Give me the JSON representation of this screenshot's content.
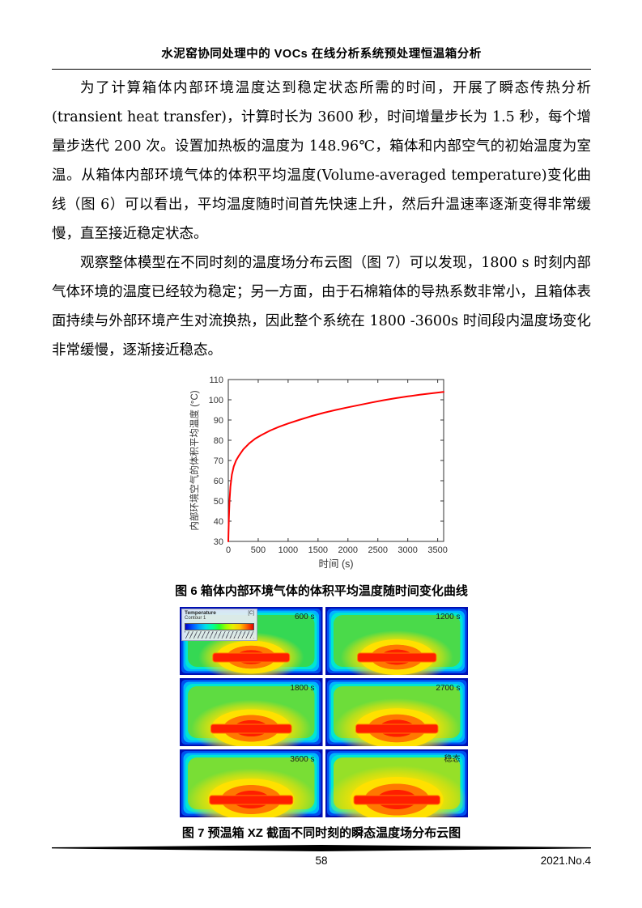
{
  "header": {
    "title": "水泥窑协同处理中的 VOCs 在线分析系统预处理恒温箱分析"
  },
  "paragraphs": {
    "p1": "为了计算箱体内部环境温度达到稳定状态所需的时间，开展了瞬态传热分析 (transient heat transfer)，计算时长为 3600 秒，时间增量步长为 1.5 秒，每个增量步迭代 200 次。设置加热板的温度为 148.96℃，箱体和内部空气的初始温度为室温。从箱体内部环境气体的体积平均温度(Volume-averaged temperature)变化曲线（图 6）可以看出，平均温度随时间首先快速上升，然后升温速率逐渐变得非常缓慢，直至接近稳定状态。",
    "p2": "观察整体模型在不同时刻的温度场分布云图（图 7）可以发现，1800 s 时刻内部气体环境的温度已经较为稳定；另一方面，由于石棉箱体的导热系数非常小，且箱体表面持续与外部环境产生对流换热，因此整个系统在 1800 -3600s 时间段内温度场变化非常缓慢，逐渐接近稳态。"
  },
  "chart_data": {
    "type": "line",
    "title": "",
    "xlabel": "时间 (s)",
    "ylabel": "内部环境空气的体积平均温度 (°C)",
    "xlim": [
      0,
      3600
    ],
    "ylim": [
      30,
      110
    ],
    "xticks": [
      0,
      500,
      1000,
      1500,
      2000,
      2500,
      3000,
      3500
    ],
    "yticks": [
      30,
      40,
      50,
      60,
      70,
      80,
      90,
      100,
      110
    ],
    "grid": false,
    "legend": null,
    "line_color": "#ff0000",
    "x": [
      0,
      8,
      20,
      35,
      60,
      90,
      130,
      180,
      250,
      350,
      450,
      550,
      700,
      850,
      1000,
      1200,
      1400,
      1600,
      1800,
      2000,
      2200,
      2400,
      2600,
      2800,
      3000,
      3200,
      3400,
      3600
    ],
    "y": [
      30,
      40,
      50,
      57,
      63,
      67,
      70,
      72.5,
      75.5,
      78.5,
      80.8,
      82.5,
      84.8,
      86.7,
      88.3,
      90.2,
      92,
      93.6,
      95,
      96.3,
      97.5,
      98.7,
      99.8,
      100.8,
      101.7,
      102.5,
      103.2,
      103.9
    ]
  },
  "figure6": {
    "caption": "图 6 箱体内部环境气体的体积平均温度随时间变化曲线"
  },
  "figure7": {
    "caption": "图 7 预温箱 XZ 截面不同时刻的瞬态温度场分布云图",
    "legend": {
      "title": "Temperature",
      "subtitle": "Contour 1",
      "unit": "[C]"
    },
    "panels": [
      {
        "label": "600 s",
        "warmth": 0.05
      },
      {
        "label": "1200 s",
        "warmth": 0.25
      },
      {
        "label": "1800 s",
        "warmth": 0.45
      },
      {
        "label": "2700 s",
        "warmth": 0.6
      },
      {
        "label": "3600 s",
        "warmth": 0.72
      },
      {
        "label": "稳态",
        "warmth": 1.0
      }
    ],
    "palette": {
      "border_blue": "#000fb4",
      "edge_blue": "#0050f0",
      "cyan": "#00b4ff",
      "teal": "#00e6d2",
      "green_cool": "#30d855",
      "green_warm": "#96e028",
      "yellow": "#ffe100",
      "orange": "#ff7800",
      "red": "#ff1e00"
    }
  },
  "footer": {
    "page_number": "58",
    "issue": "2021.No.4"
  }
}
